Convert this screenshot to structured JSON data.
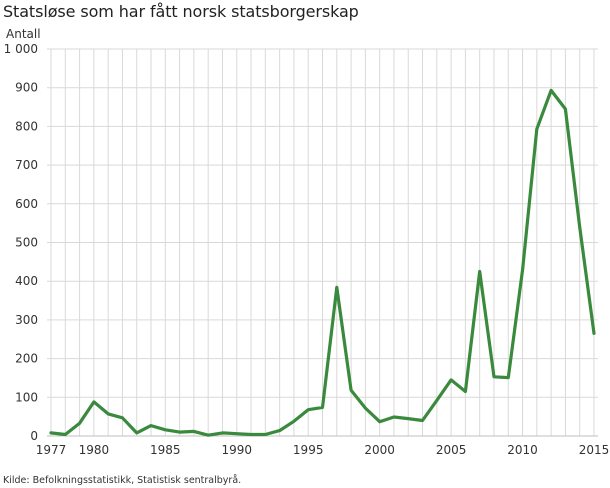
{
  "title": "Statsløse som har fått norsk statsborgerskap",
  "source": "Kilde: Befolkningsstatistikk, Statistisk sentralbyrå.",
  "colors": {
    "line": "#3a8a3e",
    "grid": "#d9d9d9",
    "axis": "#bfbfbf"
  },
  "chart_data": {
    "type": "line",
    "title": "Statsløse som har fått norsk statsborgerskap",
    "xlabel": "",
    "ylabel": "Antall",
    "ylim": [
      0,
      1000
    ],
    "xlim": [
      1977,
      2015
    ],
    "grid": true,
    "legend": "none",
    "yticks": [
      0,
      100,
      200,
      300,
      400,
      500,
      600,
      700,
      800,
      900,
      1000
    ],
    "ytick_labels": [
      "0",
      "100",
      "200",
      "300",
      "400",
      "500",
      "600",
      "700",
      "800",
      "900",
      "1 000"
    ],
    "xticks": [
      1977,
      1980,
      1985,
      1990,
      1995,
      2000,
      2005,
      2010,
      2015
    ],
    "x": [
      1977,
      1978,
      1979,
      1980,
      1981,
      1982,
      1983,
      1984,
      1985,
      1986,
      1987,
      1988,
      1989,
      1990,
      1991,
      1992,
      1993,
      1994,
      1995,
      1996,
      1997,
      1998,
      1999,
      2000,
      2001,
      2002,
      2003,
      2004,
      2005,
      2006,
      2007,
      2008,
      2009,
      2010,
      2011,
      2012,
      2013,
      2014,
      2015
    ],
    "series": [
      {
        "name": "Statsløse som har fått norsk statsborgerskap",
        "values": [
          8,
          4,
          33,
          88,
          57,
          47,
          8,
          27,
          16,
          10,
          12,
          2,
          8,
          6,
          4,
          4,
          14,
          38,
          68,
          74,
          384,
          118,
          72,
          37,
          49,
          45,
          40,
          92,
          145,
          115,
          425,
          153,
          151,
          430,
          793,
          893,
          845,
          540,
          265
        ]
      }
    ]
  }
}
